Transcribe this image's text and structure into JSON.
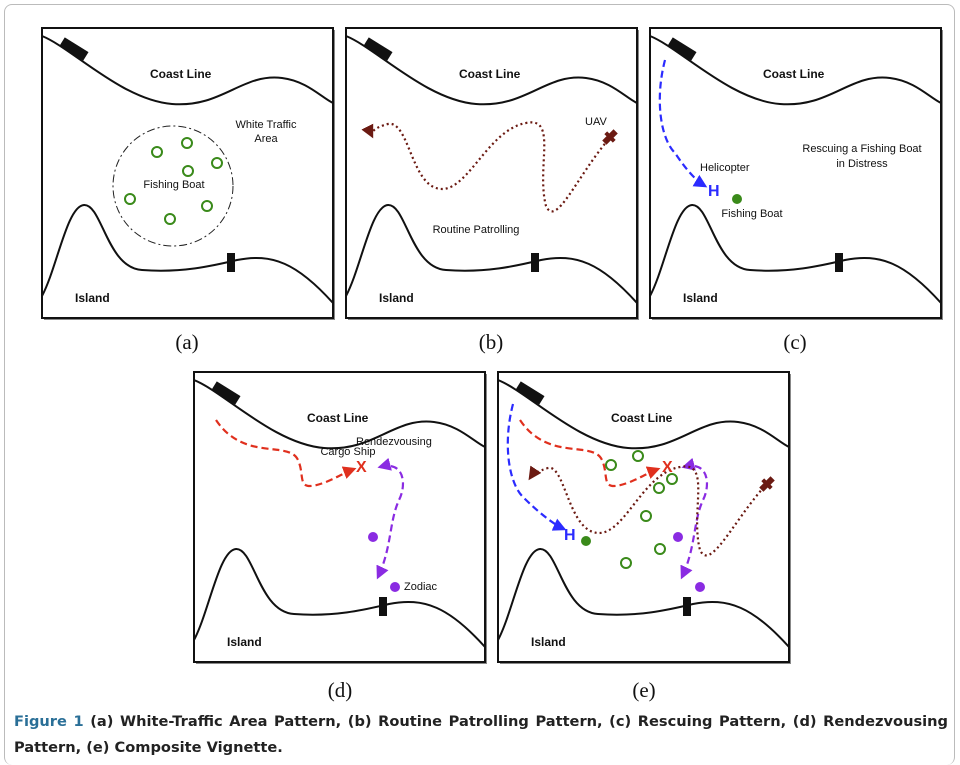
{
  "panels": [
    {
      "label": "(a)",
      "coast": "Coast Line",
      "area": [
        "White Traffic",
        "Area"
      ],
      "boat": "Fishing Boat",
      "island": "Island"
    },
    {
      "label": "(b)",
      "coast": "Coast Line",
      "uav": "UAV",
      "patrol": "Routine Patrolling",
      "island": "Island"
    },
    {
      "label": "(c)",
      "coast": "Coast Line",
      "rescue": [
        "Rescuing a Fishing Boat",
        "in Distress"
      ],
      "helicopter": "Helicopter",
      "h": "H",
      "boat": "Fishing Boat",
      "island": "Island"
    },
    {
      "label": "(d)",
      "coast": "Coast Line",
      "rendezvous": "Rendezvousing",
      "ship": "Cargo Ship",
      "x": "X",
      "zodiac": "Zodiac",
      "island": "Island"
    },
    {
      "label": "(e)",
      "coast": "Coast Line",
      "h": "H",
      "x": "X",
      "island": "Island"
    }
  ],
  "caption": {
    "lead": "Figure 1",
    "text": "(a) White-Traffic Area Pattern, (b) Routine Patrolling Pattern, (c) Rescuing Pattern, (d) Rendezvousing Pattern, (e) Composite Vignette",
    "end": "."
  }
}
